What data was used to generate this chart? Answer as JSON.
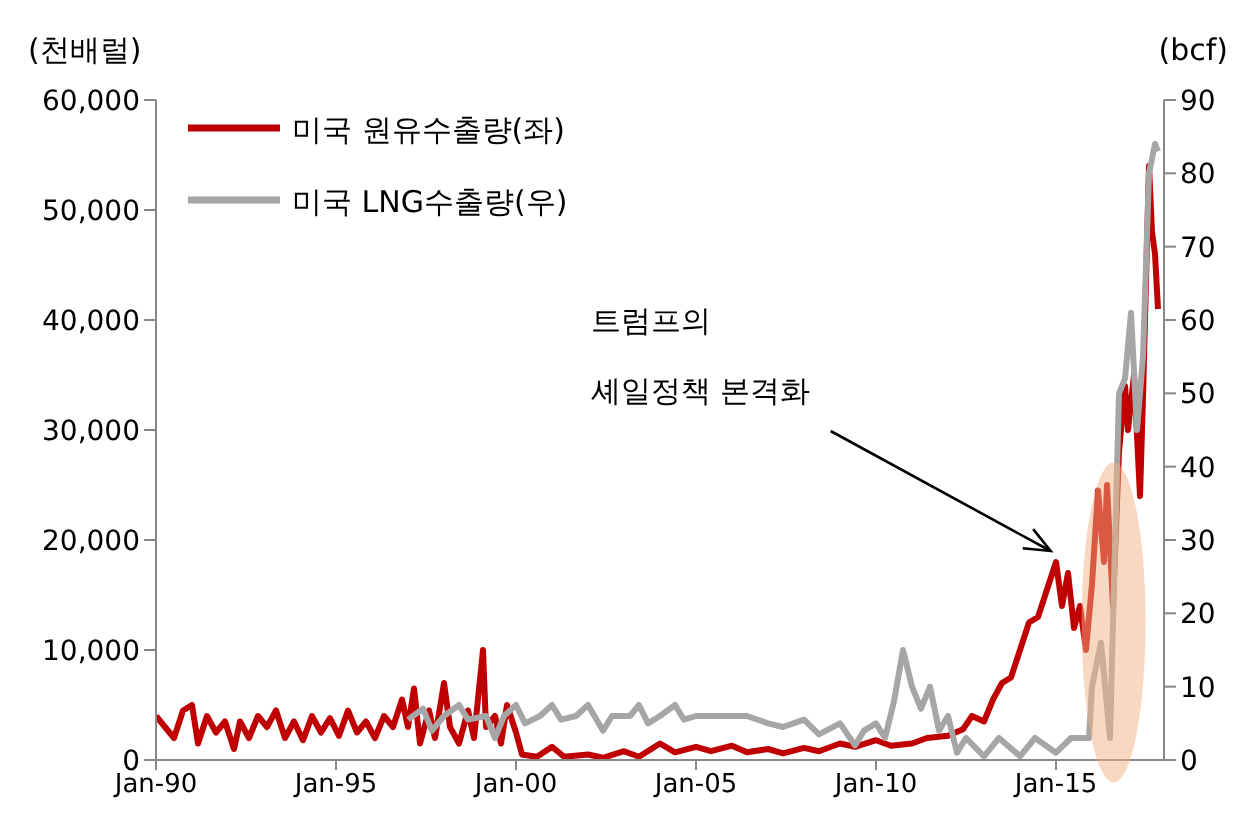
{
  "chart_data": {
    "type": "line",
    "ylabel": "(천배럴)",
    "y2label": "(bcf)",
    "xlim": [
      "1990-01",
      "2018-01"
    ],
    "xticks": [
      {
        "value": "1990-01",
        "label": "Jan-90"
      },
      {
        "value": "1995-01",
        "label": "Jan-95"
      },
      {
        "value": "2000-01",
        "label": "Jan-00"
      },
      {
        "value": "2005-01",
        "label": "Jan-05"
      },
      {
        "value": "2010-01",
        "label": "Jan-10"
      },
      {
        "value": "2015-01",
        "label": "Jan-15"
      }
    ],
    "ylim": [
      0,
      60000
    ],
    "yticks": [
      0,
      {
        "value": 10000,
        "label": "10,000"
      },
      {
        "value": 20000,
        "label": "20,000"
      },
      {
        "value": 30000,
        "label": "30,000"
      },
      {
        "value": 40000,
        "label": "40,000"
      },
      {
        "value": 50000,
        "label": "50,000"
      },
      {
        "value": 60000,
        "label": "60,000"
      }
    ],
    "y2lim": [
      0,
      90
    ],
    "y2ticks": [
      0,
      10,
      20,
      30,
      40,
      50,
      60,
      70,
      80,
      90
    ],
    "legend": "top left",
    "grid": false,
    "marker": "none",
    "line_style": "solid",
    "annotations": [
      "트럼프의\n셰일정책 본격화"
    ],
    "series": [
      {
        "name": "미국 원유수출량(좌)",
        "color": "#c00000",
        "x": [
          "1990-01",
          "1990-04",
          "1990-07",
          "1990-10",
          "1991-01",
          "1991-03",
          "1991-06",
          "1991-09",
          "1991-12",
          "1992-03",
          "1992-05",
          "1992-08",
          "1992-11",
          "1993-02",
          "1993-05",
          "1993-08",
          "1993-11",
          "1994-02",
          "1994-05",
          "1994-08",
          "1994-11",
          "1995-02",
          "1995-05",
          "1995-08",
          "1995-11",
          "1996-02",
          "1996-05",
          "1996-08",
          "1996-11",
          "1997-01",
          "1997-03",
          "1997-05",
          "1997-08",
          "1997-10",
          "1998-01",
          "1998-03",
          "1998-06",
          "1998-09",
          "1998-11",
          "1999-02",
          "1999-03",
          "1999-06",
          "1999-08",
          "1999-10",
          "2000-01",
          "2000-03",
          "2000-08",
          "2001-01",
          "2001-05",
          "2002-01",
          "2002-06",
          "2003-01",
          "2003-06",
          "2004-01",
          "2004-06",
          "2005-01",
          "2005-06",
          "2006-01",
          "2006-06",
          "2007-01",
          "2007-06",
          "2008-01",
          "2008-06",
          "2009-01",
          "2009-06",
          "2010-01",
          "2010-06",
          "2011-01",
          "2011-06",
          "2012-01",
          "2012-06",
          "2012-09",
          "2013-01",
          "2013-04",
          "2013-07",
          "2013-10",
          "2014-01",
          "2014-04",
          "2014-07",
          "2014-10",
          "2015-01",
          "2015-03",
          "2015-05",
          "2015-07",
          "2015-09",
          "2015-11",
          "2016-01",
          "2016-03",
          "2016-05",
          "2016-06",
          "2016-08",
          "2016-10",
          "2016-12",
          "2017-01",
          "2017-03",
          "2017-05",
          "2017-06",
          "2017-08",
          "2017-09",
          "2017-10",
          "2017-11"
        ],
        "values": [
          4000,
          3000,
          2000,
          4500,
          5000,
          1500,
          4000,
          2500,
          3500,
          1000,
          3500,
          2000,
          4000,
          3000,
          4500,
          2000,
          3500,
          1800,
          4000,
          2500,
          3800,
          2200,
          4500,
          2500,
          3500,
          2000,
          4000,
          3000,
          5500,
          3000,
          6500,
          1500,
          4500,
          2000,
          7000,
          3000,
          1500,
          4500,
          2000,
          10000,
          3000,
          4000,
          1500,
          5000,
          2500,
          500,
          300,
          1200,
          300,
          500,
          200,
          800,
          300,
          1500,
          700,
          1200,
          800,
          1300,
          700,
          1000,
          600,
          1100,
          800,
          1500,
          1200,
          1800,
          1300,
          1500,
          2000,
          2200,
          2800,
          4000,
          3500,
          5500,
          7000,
          7500,
          10000,
          12500,
          13000,
          15500,
          18000,
          14000,
          17000,
          12000,
          14000,
          10000,
          16000,
          24500,
          18000,
          25000,
          14000,
          28000,
          34000,
          30000,
          35000,
          24000,
          33000,
          54000,
          48000,
          46000,
          41000
        ]
      },
      {
        "name": "미국 LNG수출량(우)",
        "color": "#a6a6a6",
        "axis": "y2",
        "x": [
          "1997-01",
          "1997-06",
          "1997-09",
          "1998-01",
          "1998-06",
          "1998-09",
          "1999-03",
          "1999-06",
          "1999-09",
          "2000-01",
          "2000-04",
          "2000-09",
          "2001-01",
          "2001-04",
          "2001-09",
          "2002-01",
          "2002-06",
          "2002-09",
          "2003-03",
          "2003-06",
          "2003-09",
          "2004-01",
          "2004-06",
          "2004-09",
          "2005-01",
          "2005-06",
          "2006-01",
          "2006-06",
          "2007-01",
          "2007-06",
          "2008-01",
          "2008-06",
          "2009-01",
          "2009-06",
          "2009-09",
          "2010-01",
          "2010-04",
          "2010-07",
          "2010-10",
          "2011-01",
          "2011-04",
          "2011-07",
          "2011-10",
          "2012-01",
          "2012-04",
          "2012-07",
          "2013-01",
          "2013-06",
          "2014-01",
          "2014-06",
          "2015-01",
          "2015-06",
          "2015-12",
          "2016-01",
          "2016-04",
          "2016-07",
          "2016-10",
          "2016-12",
          "2017-02",
          "2017-04",
          "2017-06",
          "2017-08",
          "2017-10",
          "2017-11"
        ],
        "values": [
          5.5,
          7,
          4,
          6,
          7.5,
          5.5,
          6,
          3,
          6,
          7.5,
          5,
          6,
          7.5,
          5.5,
          6,
          7.5,
          4,
          6,
          6,
          7.5,
          5,
          6,
          7.5,
          5.5,
          6,
          6,
          6,
          6,
          5,
          4.5,
          5.5,
          3.5,
          5,
          2,
          4,
          5,
          3,
          8,
          15,
          10,
          7,
          10,
          4,
          6,
          1,
          3,
          0.5,
          3,
          0.5,
          3,
          1,
          3,
          3,
          10,
          16,
          3,
          50,
          52,
          61,
          45,
          55,
          80,
          84,
          83
        ]
      }
    ]
  }
}
